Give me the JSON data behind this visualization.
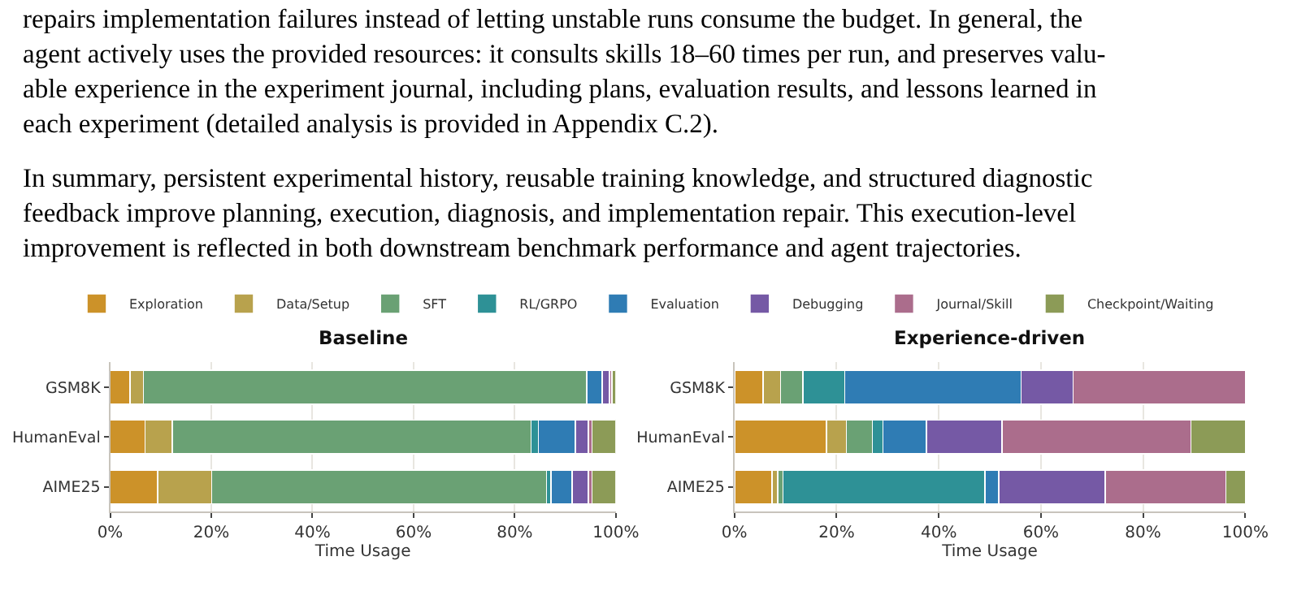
{
  "chart_data": [
    {
      "type": "bar",
      "title": "Baseline",
      "xlabel": "Time Usage",
      "orientation": "horizontal",
      "stacked": true,
      "grid": "x",
      "legend": "top",
      "annotations": [
        "repairs implementation failures instead of letting unstable runs consume the budget. In general, the\nagent actively uses the provided resources: it consults skills 18–60 times per run, and preserves valu-\nable experience in the experiment journal, including plans, evaluation results, and lessons learned in\neach experiment (detailed analysis is provided in Appendix C.2).",
        "In summary, persistent experimental history, reusable training knowledge, and structured diagnostic\nfeedback improve planning, execution, diagnosis, and implementation repair. This execution-level\nimprovement is reflected in both downstream benchmark performance and agent trajectories."
      ],
      "categories": [
        "GSM8K",
        "HumanEval",
        "AIME25"
      ],
      "xlim": [
        0,
        100
      ],
      "xticks": [
        {
          "value": 0,
          "label": "0%"
        },
        {
          "value": 20,
          "label": "20%"
        },
        {
          "value": 40,
          "label": "40%"
        },
        {
          "value": 60,
          "label": "60%"
        },
        {
          "value": 80,
          "label": "80%"
        },
        {
          "value": 100,
          "label": "100%"
        }
      ],
      "series": [
        {
          "name": "Exploration",
          "color": "#cc9229",
          "values": [
            3.9,
            6.9,
            9.4
          ]
        },
        {
          "name": "Data/Setup",
          "color": "#b8a24d",
          "values": [
            2.7,
            5.4,
            10.7
          ]
        },
        {
          "name": "SFT",
          "color": "#6aa174",
          "values": [
            87.6,
            70.9,
            66.2
          ]
        },
        {
          "name": "RL/GRPO",
          "color": "#2e9196",
          "values": [
            null,
            1.5,
            0.9
          ]
        },
        {
          "name": "Evaluation",
          "color": "#2f7cb4",
          "values": [
            3.1,
            7.3,
            4.1
          ]
        },
        {
          "name": "Debugging",
          "color": "#7559a5",
          "values": [
            1.4,
            2.6,
            3.3
          ]
        },
        {
          "name": "Journal/Skill",
          "color": "#ab6d8c",
          "values": [
            0.5,
            0.7,
            0.7
          ]
        },
        {
          "name": "Checkpoint/Waiting",
          "color": "#8c9b57",
          "values": [
            0.8,
            4.7,
            4.7
          ]
        }
      ]
    },
    {
      "type": "bar",
      "title": "Experience-driven",
      "xlabel": "Time Usage",
      "orientation": "horizontal",
      "stacked": true,
      "grid": "x",
      "categories": [
        "GSM8K",
        "HumanEval",
        "AIME25"
      ],
      "xlim": [
        0,
        100
      ],
      "xticks": [
        {
          "value": 0,
          "label": "0%"
        },
        {
          "value": 20,
          "label": "20%"
        },
        {
          "value": 40,
          "label": "40%"
        },
        {
          "value": 60,
          "label": "60%"
        },
        {
          "value": 80,
          "label": "80%"
        },
        {
          "value": 100,
          "label": "100%"
        }
      ],
      "series": [
        {
          "name": "Exploration",
          "color": "#cc9229",
          "values": [
            5.6,
            18.0,
            7.4
          ]
        },
        {
          "name": "Data/Setup",
          "color": "#b8a24d",
          "values": [
            3.4,
            3.9,
            1.1
          ]
        },
        {
          "name": "SFT",
          "color": "#6aa174",
          "values": [
            4.4,
            5.1,
            1.0
          ]
        },
        {
          "name": "RL/GRPO",
          "color": "#2e9196",
          "values": [
            8.2,
            2.1,
            39.5
          ]
        },
        {
          "name": "Evaluation",
          "color": "#2f7cb4",
          "values": [
            34.5,
            8.5,
            2.7
          ]
        },
        {
          "name": "Debugging",
          "color": "#7559a5",
          "values": [
            10.2,
            14.8,
            20.9
          ]
        },
        {
          "name": "Journal/Skill",
          "color": "#ab6d8c",
          "values": [
            33.7,
            37.0,
            23.6
          ]
        },
        {
          "name": "Checkpoint/Waiting",
          "color": "#8c9b57",
          "values": [
            null,
            10.6,
            3.8
          ]
        }
      ]
    }
  ]
}
